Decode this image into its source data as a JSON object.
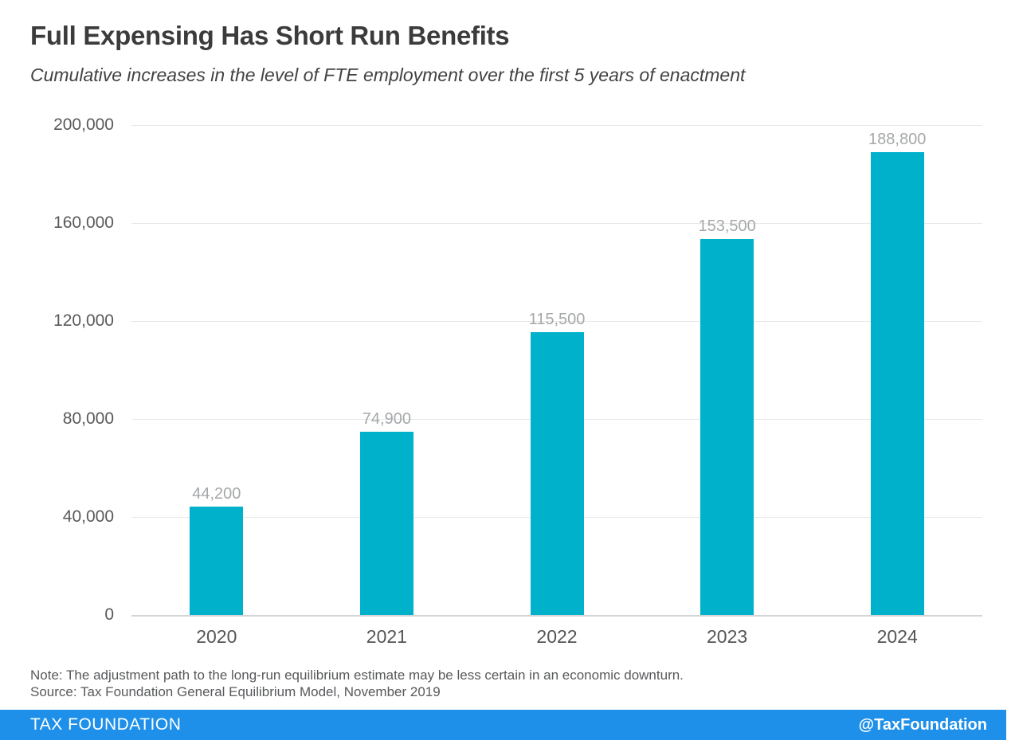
{
  "header": {
    "title": "Full Expensing Has Short Run Benefits",
    "subtitle": "Cumulative increases in the level of FTE employment over the first 5 years of enactment"
  },
  "chart_data": {
    "type": "bar",
    "title": "Full Expensing Has Short Run Benefits",
    "subtitle": "Cumulative increases in the level of FTE employment over the first 5 years of enactment",
    "categories": [
      "2020",
      "2021",
      "2022",
      "2023",
      "2024"
    ],
    "values": [
      44200,
      74900,
      115500,
      153500,
      188800
    ],
    "value_labels": [
      "44,200",
      "74,900",
      "115,500",
      "153,500",
      "188,800"
    ],
    "xlabel": "",
    "ylabel": "",
    "ylim": [
      0,
      200000
    ],
    "y_tick_values": [
      0,
      40000,
      80000,
      120000,
      160000,
      200000
    ],
    "y_tick_labels": [
      "0",
      "40,000",
      "80,000",
      "120,000",
      "160,000",
      "200,000"
    ],
    "grid": true,
    "legend": "none",
    "bar_color": "#00b1cb",
    "value_label_color": "#a5a7a9",
    "gridline_color": "#e7e8e9"
  },
  "footnotes": {
    "note": "Note: The adjustment path to the long-run equilibrium estimate may be less certain in an economic downturn.",
    "source": "Source: Tax Foundation General Equilibrium Model, November 2019"
  },
  "footer": {
    "brand": "TAX FOUNDATION",
    "handle": "@TaxFoundation",
    "background_color": "#1e90ea",
    "text_color": "#ffffff"
  }
}
